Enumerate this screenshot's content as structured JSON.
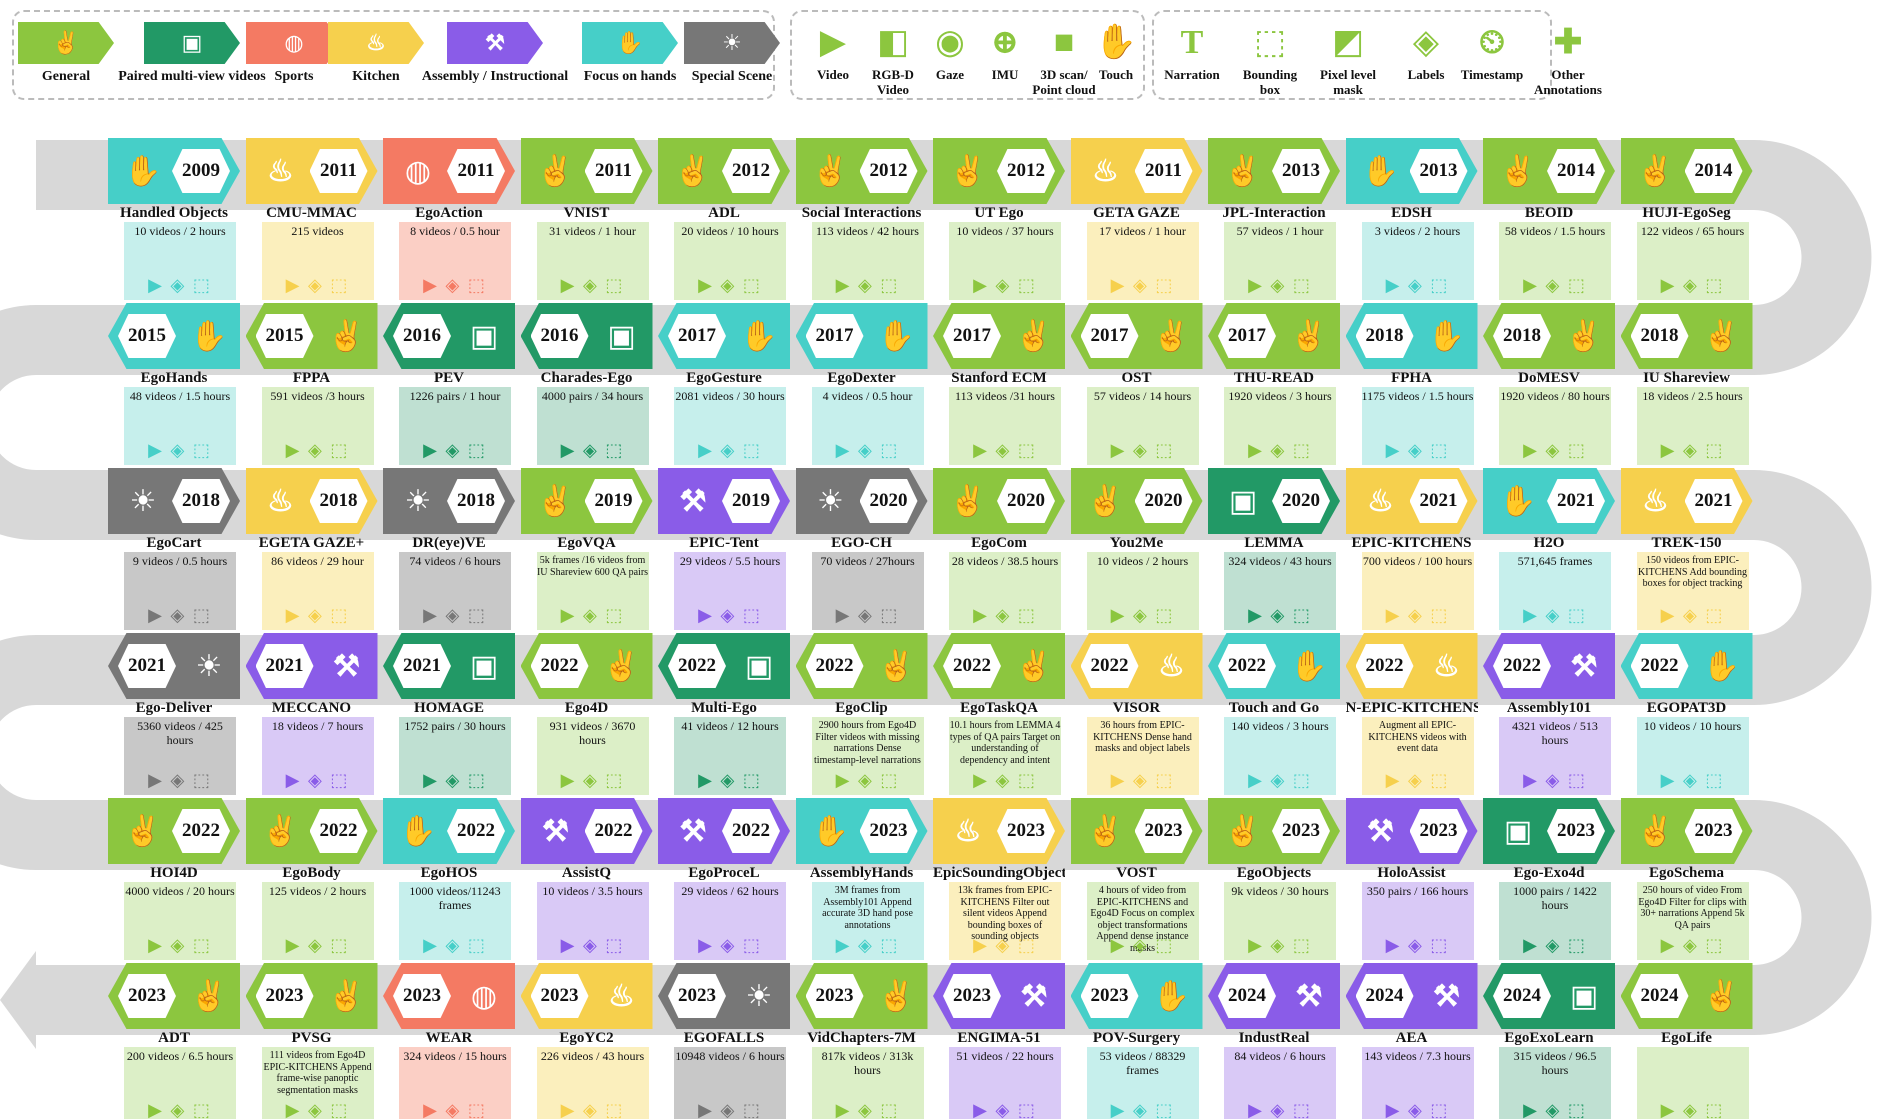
{
  "legend": {
    "categories": [
      {
        "label": "General",
        "icon": "people-icon",
        "color": "#8cc63f"
      },
      {
        "label": "Paired multi-view videos",
        "icon": "camera-icon",
        "color": "#229966"
      },
      {
        "label": "Sports",
        "icon": "basketball-icon",
        "color": "#f47a63"
      },
      {
        "label": "Kitchen",
        "icon": "food-icon",
        "color": "#f6d04d"
      },
      {
        "label": "Assembly / Instructional",
        "icon": "wrench-icon",
        "color": "#8a5ce8"
      },
      {
        "label": "Focus on hands",
        "icon": "hand-icon",
        "color": "#46cfc8"
      },
      {
        "label": "Special Scene",
        "icon": "lightbulb-icon",
        "color": "#777777"
      }
    ],
    "modalities": [
      "Video",
      "RGB-D Video",
      "Gaze",
      "IMU",
      "3D scan/ Point cloud",
      "Touch"
    ],
    "annotations": [
      "Narration",
      "Bounding box",
      "Pixel level mask",
      "Labels",
      "Timestamp",
      "Other Annotations"
    ]
  },
  "rows": [
    [
      {
        "year": "2009",
        "cat": "hands",
        "name": "Handled Objects",
        "stats": "10 videos / 2 hours"
      },
      {
        "year": "2011",
        "cat": "kitchen",
        "name": "CMU-MMAC",
        "stats": "215 videos"
      },
      {
        "year": "2011",
        "cat": "sports",
        "name": "EgoAction",
        "stats": "8 videos / 0.5 hour"
      },
      {
        "year": "2011",
        "cat": "general",
        "name": "VNIST",
        "stats": "31 videos / 1 hour"
      },
      {
        "year": "2012",
        "cat": "general",
        "name": "ADL",
        "stats": "20 videos / 10 hours"
      },
      {
        "year": "2012",
        "cat": "general",
        "name": "Social Interactions",
        "stats": "113 videos / 42 hours"
      },
      {
        "year": "2012",
        "cat": "general",
        "name": "UT Ego",
        "stats": "10 videos / 37 hours"
      },
      {
        "year": "2011",
        "cat": "kitchen",
        "name": "GETA GAZE",
        "stats": "17 videos / 1 hour"
      },
      {
        "year": "2013",
        "cat": "general",
        "name": "JPL-Interaction",
        "stats": "57 videos / 1 hour"
      },
      {
        "year": "2013",
        "cat": "hands",
        "name": "EDSH",
        "stats": "3 videos / 2 hours"
      },
      {
        "year": "2014",
        "cat": "general",
        "name": "BEOID",
        "stats": "58 videos / 1.5 hours"
      },
      {
        "year": "2014",
        "cat": "general",
        "name": "HUJI-EgoSeg",
        "stats": "122 videos / 65 hours"
      }
    ],
    [
      {
        "year": "2018",
        "cat": "general",
        "name": "IU Shareview",
        "stats": "18 videos / 2.5 hours"
      },
      {
        "year": "2018",
        "cat": "general",
        "name": "DoMESV",
        "stats": "1920 videos / 80 hours"
      },
      {
        "year": "2018",
        "cat": "hands",
        "name": "FPHA",
        "stats": "1175 videos / 1.5 hours"
      },
      {
        "year": "2017",
        "cat": "general",
        "name": "THU-READ",
        "stats": "1920 videos / 3 hours"
      },
      {
        "year": "2017",
        "cat": "general",
        "name": "OST",
        "stats": "57 videos / 14 hours"
      },
      {
        "year": "2017",
        "cat": "general",
        "name": "Stanford ECM",
        "stats": "113 videos /31 hours"
      },
      {
        "year": "2017",
        "cat": "hands",
        "name": "EgoDexter",
        "stats": "4 videos / 0.5 hour"
      },
      {
        "year": "2017",
        "cat": "hands",
        "name": "EgoGesture",
        "stats": "2081 videos / 30 hours"
      },
      {
        "year": "2016",
        "cat": "multiview",
        "name": "Charades-Ego",
        "stats": "4000 pairs / 34 hours"
      },
      {
        "year": "2016",
        "cat": "multiview",
        "name": "PEV",
        "stats": "1226 pairs / 1 hour"
      },
      {
        "year": "2015",
        "cat": "general",
        "name": "FPPA",
        "stats": "591 videos /3 hours"
      },
      {
        "year": "2015",
        "cat": "hands",
        "name": "EgoHands",
        "stats": "48 videos / 1.5 hours"
      }
    ],
    [
      {
        "year": "2018",
        "cat": "special",
        "name": "EgoCart",
        "stats": "9 videos / 0.5 hours"
      },
      {
        "year": "2018",
        "cat": "kitchen",
        "name": "EGETA GAZE+",
        "stats": "86 videos / 29 hour"
      },
      {
        "year": "2018",
        "cat": "special",
        "name": "DR(eye)VE",
        "stats": "74 videos / 6 hours"
      },
      {
        "year": "2019",
        "cat": "general",
        "name": "EgoVQA",
        "stats": "5k frames /16 videos from IU Shareview 600 QA pairs"
      },
      {
        "year": "2019",
        "cat": "assembly",
        "name": "EPIC-Tent",
        "stats": "29 videos / 5.5 hours"
      },
      {
        "year": "2020",
        "cat": "special",
        "name": "EGO-CH",
        "stats": "70 videos / 27hours"
      },
      {
        "year": "2020",
        "cat": "general",
        "name": "EgoCom",
        "stats": "28 videos / 38.5 hours"
      },
      {
        "year": "2020",
        "cat": "general",
        "name": "You2Me",
        "stats": "10 videos / 2 hours"
      },
      {
        "year": "2020",
        "cat": "multiview",
        "name": "LEMMA",
        "stats": "324 videos / 43 hours"
      },
      {
        "year": "2021",
        "cat": "kitchen",
        "name": "EPIC-KITCHENS",
        "stats": "700 videos / 100 hours"
      },
      {
        "year": "2021",
        "cat": "hands",
        "name": "H2O",
        "stats": "571,645 frames"
      },
      {
        "year": "2021",
        "cat": "kitchen",
        "name": "TREK-150",
        "stats": "150 videos from EPIC-KITCHENS Add bounding boxes for object tracking"
      }
    ],
    [
      {
        "year": "2022",
        "cat": "hands",
        "name": "EGOPAT3D",
        "stats": "10 videos / 10 hours"
      },
      {
        "year": "2022",
        "cat": "assembly",
        "name": "Assembly101",
        "stats": "4321 videos / 513 hours"
      },
      {
        "year": "2022",
        "cat": "kitchen",
        "name": "N-EPIC-KITCHENS",
        "stats": "Augment all EPIC-KITCHENS videos with event data"
      },
      {
        "year": "2022",
        "cat": "hands",
        "name": "Touch and Go",
        "stats": "140 videos / 3 hours"
      },
      {
        "year": "2022",
        "cat": "kitchen",
        "name": "VISOR",
        "stats": "36 hours from EPIC-KITCHENS Dense hand masks and object labels"
      },
      {
        "year": "2022",
        "cat": "general",
        "name": "EgoTaskQA",
        "stats": "10.1 hours from LEMMA 4 types of QA pairs Target on understanding of dependency and intent"
      },
      {
        "year": "2022",
        "cat": "general",
        "name": "EgoClip",
        "stats": "2900 hours from Ego4D Filter videos with missing narrations Dense timestamp-level narrations"
      },
      {
        "year": "2022",
        "cat": "multiview",
        "name": "Multi-Ego",
        "stats": "41 videos / 12 hours"
      },
      {
        "year": "2022",
        "cat": "general",
        "name": "Ego4D",
        "stats": "931 videos / 3670 hours"
      },
      {
        "year": "2021",
        "cat": "multiview",
        "name": "HOMAGE",
        "stats": "1752 pairs / 30 hours"
      },
      {
        "year": "2021",
        "cat": "assembly",
        "name": "MECCANO",
        "stats": "18 videos / 7 hours"
      },
      {
        "year": "2021",
        "cat": "special",
        "name": "Ego-Deliver",
        "stats": "5360 videos / 425 hours"
      }
    ],
    [
      {
        "year": "2022",
        "cat": "general",
        "name": "HOI4D",
        "stats": "4000 videos / 20 hours"
      },
      {
        "year": "2022",
        "cat": "general",
        "name": "EgoBody",
        "stats": "125 videos / 2 hours"
      },
      {
        "year": "2022",
        "cat": "hands",
        "name": "EgoHOS",
        "stats": "1000 videos/11243 frames"
      },
      {
        "year": "2022",
        "cat": "assembly",
        "name": "AssistQ",
        "stats": "10 videos / 3.5 hours"
      },
      {
        "year": "2022",
        "cat": "assembly",
        "name": "EgoProceL",
        "stats": "29 videos / 62 hours"
      },
      {
        "year": "2023",
        "cat": "hands",
        "name": "AssemblyHands",
        "stats": "3M frames from Assembly101 Append accurate 3D hand pose annotations"
      },
      {
        "year": "2023",
        "cat": "kitchen",
        "name": "EpicSoundingObject",
        "stats": "13k frames from EPIC-KITCHENS Filter out silent videos Append bounding boxes of sounding objects"
      },
      {
        "year": "2023",
        "cat": "general",
        "name": "VOST",
        "stats": "4 hours of video from EPIC-KITCHENS and Ego4D Focus on complex object transformations Append dense instance masks"
      },
      {
        "year": "2023",
        "cat": "general",
        "name": "EgoObjects",
        "stats": "9k videos / 30 hours"
      },
      {
        "year": "2023",
        "cat": "assembly",
        "name": "HoloAssist",
        "stats": "350 pairs / 166 hours"
      },
      {
        "year": "2023",
        "cat": "multiview",
        "name": "Ego-Exo4d",
        "stats": "1000 pairs / 1422 hours"
      },
      {
        "year": "2023",
        "cat": "general",
        "name": "EgoSchema",
        "stats": "250 hours of video From Ego4D Filter for clips with 30+ narrations Append 5k QA pairs"
      }
    ],
    [
      {
        "year": "2024",
        "cat": "general",
        "name": "EgoLife",
        "stats": ""
      },
      {
        "year": "2024",
        "cat": "multiview",
        "name": "EgoExoLearn",
        "stats": "315 videos / 96.5 hours"
      },
      {
        "year": "2024",
        "cat": "assembly",
        "name": "AEA",
        "stats": "143 videos / 7.3 hours"
      },
      {
        "year": "2024",
        "cat": "assembly",
        "name": "IndustReal",
        "stats": "84 videos / 6 hours"
      },
      {
        "year": "2023",
        "cat": "hands",
        "name": "POV-Surgery",
        "stats": "53 videos / 88329 frames"
      },
      {
        "year": "2023",
        "cat": "assembly",
        "name": "ENGIMA-51",
        "stats": "51 videos / 22 hours"
      },
      {
        "year": "2023",
        "cat": "general",
        "name": "VidChapters-7M",
        "stats": "817k videos / 313k hours"
      },
      {
        "year": "2023",
        "cat": "special",
        "name": "EGOFALLS",
        "stats": "10948 videos / 6 hours"
      },
      {
        "year": "2023",
        "cat": "kitchen",
        "name": "EgoYC2",
        "stats": "226 videos / 43 hours"
      },
      {
        "year": "2023",
        "cat": "sports",
        "name": "WEAR",
        "stats": "324 videos / 15 hours"
      },
      {
        "year": "2023",
        "cat": "general",
        "name": "PVSG",
        "stats": "111 videos from Ego4D EPIC-KITCHENS Append frame-wise panoptic segmentation masks"
      },
      {
        "year": "2023",
        "cat": "general",
        "name": "ADT",
        "stats": "200 videos / 6.5 hours"
      }
    ]
  ]
}
